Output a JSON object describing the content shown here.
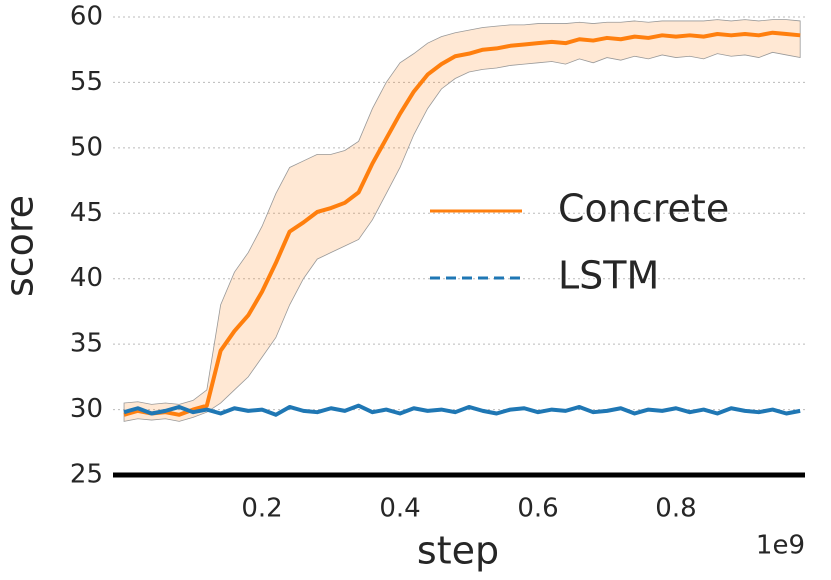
{
  "chart_data": {
    "type": "line",
    "x": [
      0,
      0.02,
      0.04,
      0.06,
      0.08,
      0.1,
      0.12,
      0.14,
      0.16,
      0.18,
      0.2,
      0.22,
      0.24,
      0.26,
      0.28,
      0.3,
      0.32,
      0.34,
      0.36,
      0.38,
      0.4,
      0.42,
      0.44,
      0.46,
      0.48,
      0.5,
      0.52,
      0.54,
      0.56,
      0.58,
      0.6,
      0.62,
      0.64,
      0.66,
      0.68,
      0.7,
      0.72,
      0.74,
      0.76,
      0.78,
      0.8,
      0.82,
      0.84,
      0.86,
      0.88,
      0.9,
      0.92,
      0.94,
      0.96,
      0.98
    ],
    "series": [
      {
        "name": "Concrete",
        "color": "#ff7f0e",
        "dash": false,
        "values": [
          29.6,
          29.9,
          29.7,
          29.8,
          29.6,
          30.0,
          30.3,
          34.5,
          36.0,
          37.2,
          39.0,
          41.2,
          43.6,
          44.3,
          45.1,
          45.4,
          45.8,
          46.6,
          48.8,
          50.7,
          52.6,
          54.3,
          55.6,
          56.4,
          57.0,
          57.2,
          57.5,
          57.6,
          57.8,
          57.9,
          58.0,
          58.1,
          58.0,
          58.3,
          58.2,
          58.4,
          58.3,
          58.5,
          58.4,
          58.6,
          58.5,
          58.6,
          58.5,
          58.7,
          58.6,
          58.7,
          58.6,
          58.8,
          58.7,
          58.6
        ],
        "lower": [
          29.1,
          29.3,
          29.2,
          29.3,
          29.1,
          29.4,
          29.8,
          30.5,
          31.5,
          32.5,
          34.0,
          35.5,
          38.0,
          40.0,
          41.5,
          42.0,
          42.5,
          43.0,
          44.5,
          46.5,
          48.5,
          51.0,
          53.0,
          54.5,
          55.3,
          55.8,
          56.0,
          56.1,
          56.3,
          56.4,
          56.5,
          56.6,
          56.4,
          56.8,
          56.5,
          56.9,
          56.7,
          57.0,
          56.8,
          57.1,
          56.9,
          57.0,
          56.8,
          57.2,
          57.0,
          57.1,
          56.9,
          57.3,
          57.1,
          56.9
        ],
        "upper": [
          30.5,
          30.6,
          30.4,
          30.5,
          30.4,
          30.7,
          31.5,
          38.0,
          40.5,
          42.0,
          44.0,
          46.5,
          48.5,
          49.0,
          49.5,
          49.5,
          49.8,
          50.5,
          53.0,
          55.0,
          56.5,
          57.2,
          58.0,
          58.5,
          58.8,
          59.0,
          59.2,
          59.3,
          59.4,
          59.4,
          59.5,
          59.5,
          59.5,
          59.6,
          59.5,
          59.6,
          59.6,
          59.7,
          59.6,
          59.7,
          59.7,
          59.7,
          59.7,
          59.8,
          59.7,
          59.8,
          59.7,
          59.8,
          59.8,
          59.7
        ]
      },
      {
        "name": "LSTM",
        "color": "#1f77b4",
        "dash": true,
        "values": [
          29.8,
          30.1,
          29.7,
          29.9,
          30.2,
          29.8,
          30.0,
          29.7,
          30.1,
          29.9,
          30.0,
          29.6,
          30.2,
          29.9,
          29.8,
          30.1,
          29.9,
          30.3,
          29.8,
          30.0,
          29.7,
          30.1,
          29.9,
          30.0,
          29.8,
          30.2,
          29.9,
          29.7,
          30.0,
          30.1,
          29.8,
          30.0,
          29.9,
          30.2,
          29.8,
          29.9,
          30.1,
          29.7,
          30.0,
          29.9,
          30.1,
          29.8,
          30.0,
          29.7,
          30.1,
          29.9,
          29.8,
          30.0,
          29.7,
          29.9
        ]
      }
    ],
    "xlabel": "step",
    "ylabel": "score",
    "x_offset_label": "1e9",
    "xlim": [
      -0.016,
      0.987
    ],
    "ylim": [
      25,
      60
    ],
    "xticks": [
      0.2,
      0.4,
      0.6,
      0.8
    ],
    "yticks": [
      25,
      30,
      35,
      40,
      45,
      50,
      55,
      60
    ],
    "grid": true,
    "legend": "center right"
  }
}
